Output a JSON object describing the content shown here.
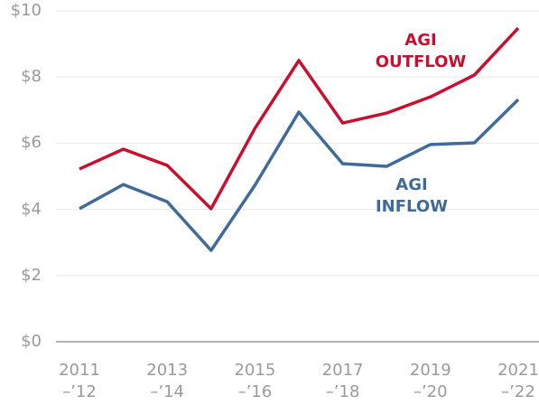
{
  "chart_data": {
    "type": "line",
    "categories": [
      "2011\n–’12",
      null,
      "2013\n–’14",
      null,
      "2015\n–’16",
      null,
      "2017\n–’18",
      null,
      "2019\n–’20",
      null,
      "2021\n–’22"
    ],
    "series": [
      {
        "name": "AGI\nOUTFLOW",
        "color": "#c8102e",
        "values": [
          5.22,
          5.82,
          5.33,
          4.02,
          6.45,
          8.5,
          6.61,
          6.91,
          7.4,
          8.06,
          9.48
        ]
      },
      {
        "name": "AGI\nINFLOW",
        "color": "#3f6b9a",
        "values": [
          4.02,
          4.75,
          4.23,
          2.76,
          4.73,
          6.94,
          5.38,
          5.3,
          5.96,
          6.01,
          7.32
        ]
      }
    ],
    "ylim": [
      0,
      10
    ],
    "yticks": [
      {
        "value": 0,
        "label": "$0"
      },
      {
        "value": 2,
        "label": "$2"
      },
      {
        "value": 4,
        "label": "$4"
      },
      {
        "value": 6,
        "label": "$6"
      },
      {
        "value": 8,
        "label": "$8"
      },
      {
        "value": 10,
        "label": "$10"
      }
    ],
    "grid": true
  }
}
